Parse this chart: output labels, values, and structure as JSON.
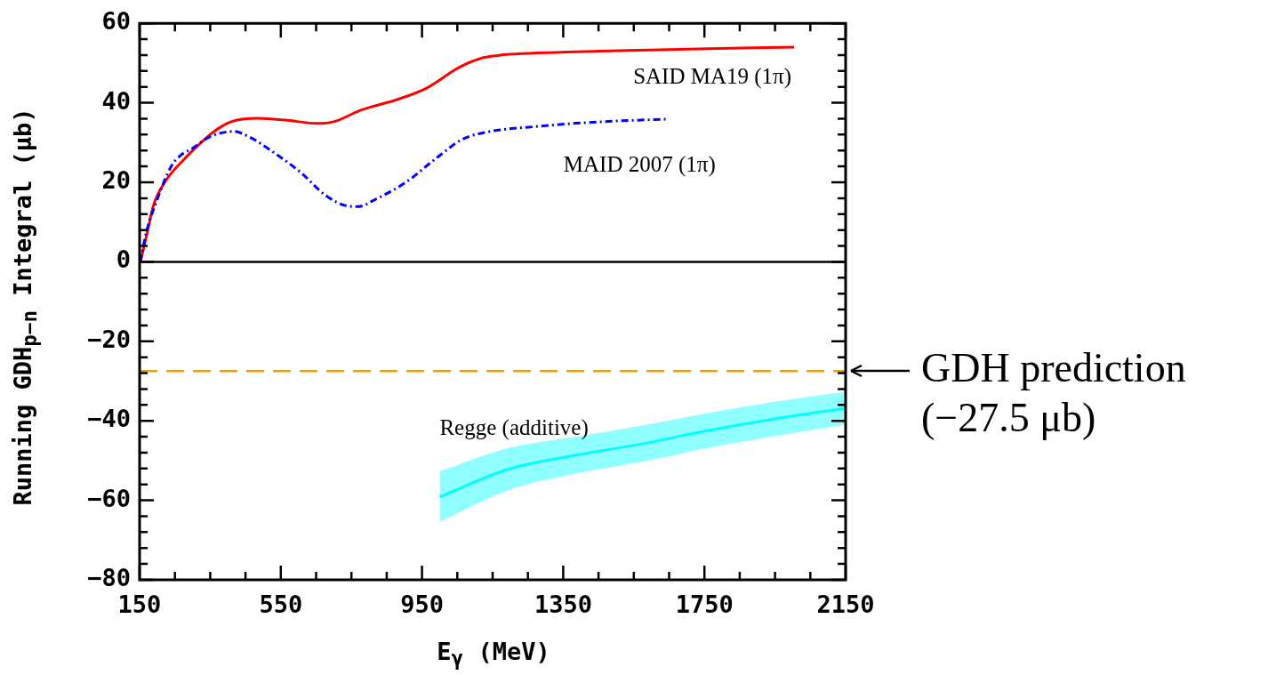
{
  "chart_data": {
    "type": "line",
    "xlabel": "E$_{γ}$ (MeV)",
    "ylabel": "Running GDH$_{p−n}$ Integral (μb)",
    "marker": "none",
    "xlim": [
      150,
      2150
    ],
    "ylim": [
      -80,
      60
    ],
    "xticks": [
      150,
      {
        "value": 250,
        "label": null
      },
      {
        "value": 350,
        "label": null
      },
      {
        "value": 450,
        "label": null
      },
      550,
      {
        "value": 650,
        "label": null
      },
      {
        "value": 750,
        "label": null
      },
      {
        "value": 850,
        "label": null
      },
      950,
      {
        "value": 1050,
        "label": null
      },
      {
        "value": 1150,
        "label": null
      },
      {
        "value": 1250,
        "label": null
      },
      1350,
      {
        "value": 1450,
        "label": null
      },
      {
        "value": 1550,
        "label": null
      },
      {
        "value": 1650,
        "label": null
      },
      1750,
      {
        "value": 1850,
        "label": null
      },
      {
        "value": 1950,
        "label": null
      },
      {
        "value": 2050,
        "label": null
      },
      2150
    ],
    "yticks": [
      {
        "value": -80,
        "label": "−80"
      },
      {
        "value": -76,
        "label": null
      },
      {
        "value": -72,
        "label": null
      },
      {
        "value": -68,
        "label": null
      },
      {
        "value": -64,
        "label": null
      },
      {
        "value": -60,
        "label": "−60"
      },
      {
        "value": -56,
        "label": null
      },
      {
        "value": -52,
        "label": null
      },
      {
        "value": -48,
        "label": null
      },
      {
        "value": -44,
        "label": null
      },
      {
        "value": -40,
        "label": "−40"
      },
      {
        "value": -36,
        "label": null
      },
      {
        "value": -32,
        "label": null
      },
      {
        "value": -28,
        "label": null
      },
      {
        "value": -24,
        "label": null
      },
      {
        "value": -20,
        "label": "−20"
      },
      {
        "value": -16,
        "label": null
      },
      {
        "value": -12,
        "label": null
      },
      {
        "value": -8,
        "label": null
      },
      {
        "value": -4,
        "label": null
      },
      0,
      {
        "value": 4,
        "label": null
      },
      {
        "value": 8,
        "label": null
      },
      {
        "value": 12,
        "label": null
      },
      {
        "value": 16,
        "label": null
      },
      20,
      {
        "value": 24,
        "label": null
      },
      {
        "value": 28,
        "label": null
      },
      {
        "value": 32,
        "label": null
      },
      {
        "value": 36,
        "label": null
      },
      40,
      {
        "value": 44,
        "label": null
      },
      {
        "value": 48,
        "label": null
      },
      {
        "value": 52,
        "label": null
      },
      {
        "value": 56,
        "label": null
      },
      60
    ],
    "ref_lines": [
      {
        "axis": "y",
        "value": 0,
        "color": "#000000",
        "line_style": "solid"
      },
      {
        "axis": "y",
        "value": -27.5,
        "color": "#e0a020",
        "line_style": "dashed",
        "label": "GDH prediction\n(−27.5 μb)"
      }
    ],
    "series": [
      {
        "name": "SAID MA19 (1π)",
        "color": "#ff0000",
        "line_style": "solid",
        "x": [
          152,
          169,
          190,
          224,
          274,
          316,
          358,
          408,
          484,
          568,
          652,
          702,
          778,
          879,
          963,
          1055,
          1114,
          1164,
          1198,
          1450,
          1702,
          2004
        ],
        "values": [
          0,
          6.3,
          14.4,
          20.4,
          25.6,
          29.3,
          32.6,
          35.2,
          36.1,
          35.6,
          34.8,
          35.3,
          38.2,
          40.8,
          43.7,
          48.9,
          51.1,
          51.9,
          52.2,
          53.0,
          53.5,
          54.0
        ]
      },
      {
        "name": "MAID 2007 (1π)",
        "color": "#0000ff",
        "line_style": "dashed",
        "x": [
          152,
          169,
          198,
          240,
          265,
          299,
          350,
          417,
          459,
          543,
          610,
          677,
          736,
          769,
          820,
          904,
          988,
          1064,
          1131,
          1282,
          1450,
          1643
        ],
        "values": [
          0,
          7.4,
          15.2,
          24.1,
          26.7,
          28.5,
          31.5,
          32.8,
          31.5,
          26.7,
          22.2,
          16.7,
          14.1,
          13.9,
          15.8,
          20.0,
          25.9,
          30.8,
          32.6,
          34.1,
          35.2,
          35.9
        ]
      },
      {
        "name": "Regge (additive)",
        "color": "#00ffff",
        "x": [
          1000,
          1197,
          1400,
          1573,
          1762,
          1950,
          2150
        ],
        "values": [
          -59.1,
          -52.1,
          -48.4,
          -45.8,
          -42.4,
          -39.5,
          -36.8
        ],
        "lower": [
          -65.4,
          -57.4,
          -53.0,
          -50.3,
          -46.8,
          -43.8,
          -40.9
        ],
        "upper": [
          -52.7,
          -46.8,
          -43.8,
          -41.2,
          -38.0,
          -35.2,
          -32.7
        ]
      }
    ]
  }
}
